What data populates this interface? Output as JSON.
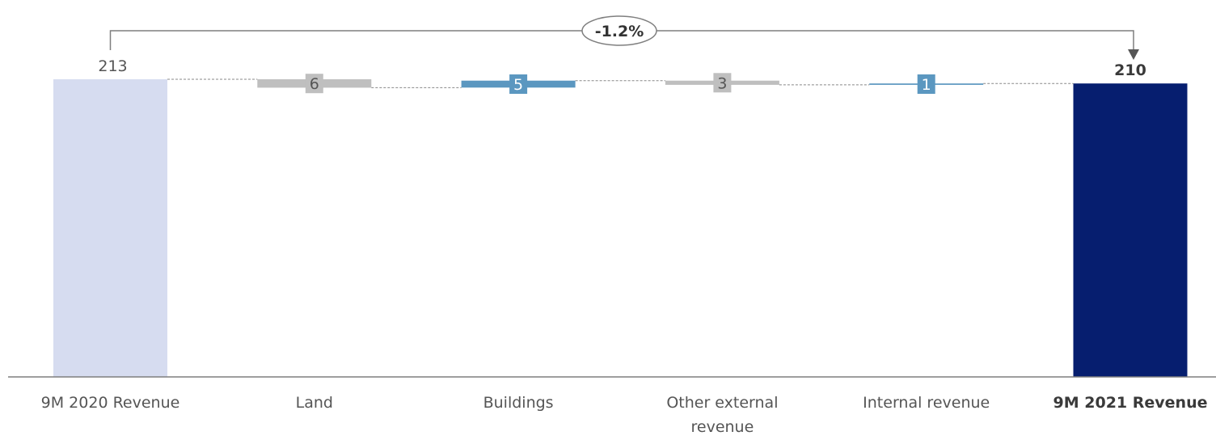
{
  "chart_data": {
    "type": "waterfall",
    "categories": [
      "9M 2020 Revenue",
      "Land",
      "Buildings",
      "Other external revenue",
      "Internal revenue",
      "9M 2021 Revenue"
    ],
    "category_label_lines": [
      [
        "9M 2020 Revenue"
      ],
      [
        "Land"
      ],
      [
        "Buildings"
      ],
      [
        "Other external",
        "revenue"
      ],
      [
        "Internal revenue"
      ],
      [
        "9M 2021 Revenue"
      ]
    ],
    "kinds": [
      "total",
      "change",
      "change",
      "change",
      "change",
      "total"
    ],
    "values": [
      213,
      -6,
      5,
      -3,
      1,
      210
    ],
    "labels": [
      "213",
      "6",
      "5",
      "3",
      "1",
      "210"
    ],
    "colors": [
      "#d6dcf0",
      "#bfbfbf",
      "#5b97c0",
      "#bfbfbf",
      "#5b97c0",
      "#061e6f"
    ],
    "bold": [
      false,
      false,
      false,
      false,
      false,
      true
    ],
    "change_annotation": "-1.2%",
    "ylim": [
      0,
      213
    ],
    "grid": false,
    "legend": "none"
  }
}
